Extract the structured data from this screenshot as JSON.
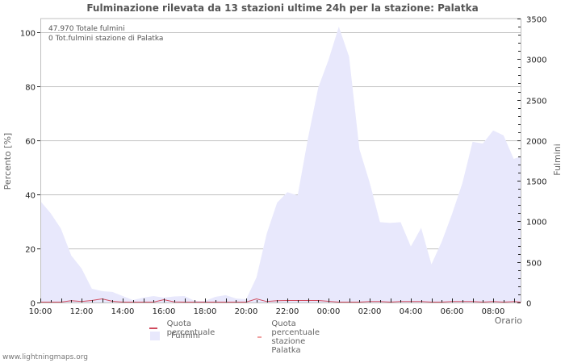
{
  "title": "Fulminazione rilevata da 13 stazioni ultime 24h per la stazione: Palatka",
  "info": {
    "line1": "47.970 Totale fulmini",
    "line2": "0 Tot.fulmini stazione di Palatka"
  },
  "axes": {
    "left_title": "Percento   [%]",
    "right_title": "Fulmini",
    "x_title": "Orario",
    "left_ticks": [
      "0",
      "20",
      "40",
      "60",
      "80",
      "100"
    ],
    "right_ticks": [
      "0",
      "500",
      "1000",
      "1500",
      "2000",
      "2500",
      "3000",
      "3500"
    ],
    "x_ticks": [
      "10:00",
      "12:00",
      "14:00",
      "16:00",
      "18:00",
      "20:00",
      "22:00",
      "00:00",
      "02:00",
      "04:00",
      "06:00",
      "08:00"
    ]
  },
  "legend": {
    "item1": "Quota percentuale",
    "item2": "Quota percentuale stazione Palatka",
    "item3": "Fulmini"
  },
  "footer": "www.lightningmaps.org",
  "colors": {
    "area": "#e8e8fc",
    "quota": "#d04b5e",
    "quota_station": "#f0a0a0",
    "grid": "#c0c0c0"
  },
  "chart_data": {
    "type": "area",
    "title": "Fulminazione rilevata da 13 stazioni ultime 24h per la stazione: Palatka",
    "xlabel": "Orario",
    "ylabel": "Percento [%]",
    "y2label": "Fulmini",
    "ylim": [
      0,
      105
    ],
    "y2lim": [
      0,
      3500
    ],
    "grid": true,
    "legend_position": "bottom",
    "x": [
      "10:00",
      "10:30",
      "11:00",
      "11:30",
      "12:00",
      "12:30",
      "13:00",
      "13:30",
      "14:00",
      "14:30",
      "15:00",
      "15:30",
      "16:00",
      "16:30",
      "17:00",
      "17:30",
      "18:00",
      "18:30",
      "19:00",
      "19:30",
      "20:00",
      "20:30",
      "21:00",
      "21:30",
      "22:00",
      "22:30",
      "23:00",
      "23:30",
      "00:00",
      "00:30",
      "01:00",
      "01:30",
      "02:00",
      "02:30",
      "03:00",
      "03:30",
      "04:00",
      "04:30",
      "05:00",
      "05:30",
      "06:00",
      "06:30",
      "07:00",
      "07:30",
      "08:00",
      "08:30",
      "09:00",
      "09:15"
    ],
    "series": [
      {
        "name": "Fulmini",
        "axis": "right",
        "values": [
          1250,
          1100,
          910,
          580,
          420,
          170,
          140,
          130,
          80,
          30,
          60,
          80,
          60,
          75,
          80,
          20,
          20,
          70,
          90,
          50,
          40,
          310,
          850,
          1230,
          1360,
          1320,
          2020,
          2650,
          2990,
          3400,
          3030,
          1890,
          1480,
          990,
          980,
          990,
          690,
          920,
          470,
          750,
          1090,
          1470,
          1980,
          1960,
          2120,
          2060,
          1770,
          1800
        ]
      },
      {
        "name": "Quota percentuale",
        "axis": "left",
        "values": [
          0,
          0,
          0,
          0.5,
          0.2,
          0.6,
          1.2,
          0.3,
          0,
          0,
          0,
          0,
          0.9,
          0.1,
          0,
          0,
          0,
          0,
          0,
          0,
          0,
          1.2,
          0.2,
          0.5,
          0.6,
          0.6,
          0.6,
          0.6,
          0.3,
          0,
          0,
          0,
          0.2,
          0.2,
          0,
          0.2,
          0.2,
          0.2,
          0,
          0,
          0.2,
          0.2,
          0.2,
          0,
          0.2,
          0,
          0.2,
          0
        ]
      },
      {
        "name": "Quota percentuale stazione Palatka",
        "axis": "left",
        "values": [
          0,
          0,
          0,
          0,
          0,
          0,
          0,
          0,
          0,
          0,
          0,
          0,
          0,
          0,
          0,
          0,
          0,
          0,
          0,
          0,
          0,
          0,
          0,
          0,
          0,
          0,
          0,
          0,
          0,
          0,
          0,
          0,
          0,
          0,
          0,
          0,
          0,
          0,
          0,
          0,
          0,
          0,
          0,
          0,
          0,
          0,
          0,
          0
        ]
      }
    ],
    "annotations": [
      "47.970 Totale fulmini",
      "0 Tot.fulmini stazione di Palatka"
    ]
  }
}
